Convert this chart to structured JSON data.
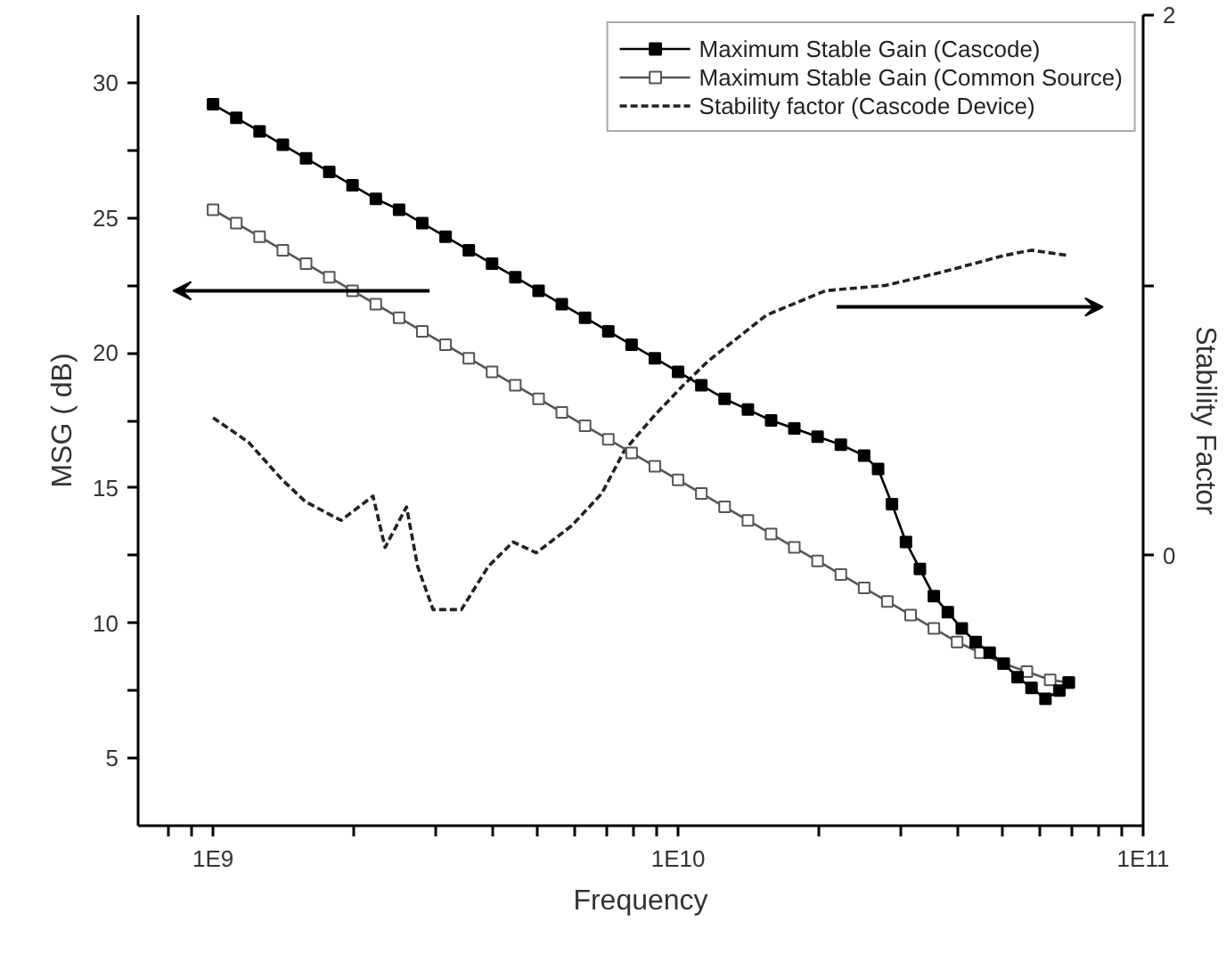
{
  "chart_data": {
    "type": "line",
    "xlabel": "Frequency",
    "ylabel": "MSG ( dB)",
    "y2label": "Stability Factor",
    "log": "x",
    "grid": false,
    "legend": "top right",
    "xlim": [
      690000000.0,
      100000000000.0
    ],
    "ylim": [
      2.5,
      32.5
    ],
    "y2lim": [
      -1,
      2
    ],
    "xticks": [
      {
        "value": 800000000.0,
        "label": null
      },
      {
        "value": 900000000.0,
        "label": null
      },
      {
        "value": 1000000000.0,
        "label": "1E9"
      },
      {
        "value": 2000000000.0,
        "label": null
      },
      {
        "value": 3000000000.0,
        "label": null
      },
      {
        "value": 4000000000.0,
        "label": null
      },
      {
        "value": 5000000000.0,
        "label": null
      },
      {
        "value": 6000000000.0,
        "label": null
      },
      {
        "value": 7000000000.0,
        "label": null
      },
      {
        "value": 8000000000.0,
        "label": null
      },
      {
        "value": 9000000000.0,
        "label": null
      },
      {
        "value": 10000000000.0,
        "label": "1E10"
      },
      {
        "value": 20000000000.0,
        "label": null
      },
      {
        "value": 30000000000.0,
        "label": null
      },
      {
        "value": 40000000000.0,
        "label": null
      },
      {
        "value": 50000000000.0,
        "label": null
      },
      {
        "value": 60000000000.0,
        "label": null
      },
      {
        "value": 70000000000.0,
        "label": null
      },
      {
        "value": 80000000000.0,
        "label": null
      },
      {
        "value": 90000000000.0,
        "label": null
      },
      {
        "value": 100000000000.0,
        "label": "1E11"
      }
    ],
    "yticks": [
      5,
      {
        "value": 7.5,
        "label": null
      },
      10,
      {
        "value": 12.5,
        "label": null
      },
      15,
      {
        "value": 17.5,
        "label": null
      },
      20,
      {
        "value": 22.5,
        "label": null
      },
      25,
      {
        "value": 27.5,
        "label": null
      },
      30
    ],
    "y2ticks": [
      0,
      {
        "value": 1,
        "label": null
      },
      2
    ],
    "series": [
      {
        "name": "Maximum Stable Gain (Cascode)",
        "color": "#000000",
        "marker": "square",
        "line_style": "solid",
        "x": [
          1000000000.0,
          1122000000.0,
          1259000000.0,
          1413000000.0,
          1585000000.0,
          1778000000.0,
          1995000000.0,
          2239000000.0,
          2512000000.0,
          2818000000.0,
          3162000000.0,
          3548000000.0,
          3981000000.0,
          4467000000.0,
          5012000000.0,
          5623000000.0,
          6310000000.0,
          7079000000.0,
          7943000000.0,
          8913000000.0,
          10000000000.0,
          11220000000.0,
          12590000000.0,
          14130000000.0,
          15850000000.0,
          17780000000.0,
          19950000000.0,
          22390000000.0,
          25120000000.0,
          26920000000.0,
          28840000000.0,
          30900000000.0,
          33110000000.0,
          35480000000.0,
          38020000000.0,
          40740000000.0,
          43650000000.0,
          46770000000.0,
          50120000000.0,
          53700000000.0,
          57540000000.0,
          61660000000.0,
          66070000000.0,
          69180000000.0
        ],
        "values": [
          29.2,
          28.7,
          28.2,
          27.7,
          27.2,
          26.7,
          26.2,
          25.7,
          25.3,
          24.8,
          24.3,
          23.8,
          23.3,
          22.8,
          22.3,
          21.8,
          21.3,
          20.8,
          20.3,
          19.8,
          19.3,
          18.8,
          18.3,
          17.9,
          17.5,
          17.2,
          16.9,
          16.6,
          16.2,
          15.7,
          14.4,
          13.0,
          12.0,
          11.0,
          10.4,
          9.8,
          9.3,
          8.9,
          8.5,
          8.0,
          7.6,
          7.2,
          7.5,
          7.8
        ]
      },
      {
        "name": "Maximum Stable Gain (Common Source)",
        "color": "#555555",
        "marker": "square",
        "line_style": "solid",
        "x": [
          1000000000.0,
          1122000000.0,
          1259000000.0,
          1413000000.0,
          1585000000.0,
          1778000000.0,
          1995000000.0,
          2239000000.0,
          2512000000.0,
          2818000000.0,
          3162000000.0,
          3548000000.0,
          3981000000.0,
          4467000000.0,
          5012000000.0,
          5623000000.0,
          6310000000.0,
          7079000000.0,
          7943000000.0,
          8913000000.0,
          10000000000.0,
          11220000000.0,
          12590000000.0,
          14130000000.0,
          15850000000.0,
          17780000000.0,
          19950000000.0,
          22390000000.0,
          25120000000.0,
          28180000000.0,
          31620000000.0,
          35480000000.0,
          39810000000.0,
          44670000000.0,
          50120000000.0,
          56230000000.0,
          63100000000.0,
          69180000000.0
        ],
        "values": [
          25.3,
          24.8,
          24.3,
          23.8,
          23.3,
          22.8,
          22.3,
          21.8,
          21.3,
          20.8,
          20.3,
          19.8,
          19.3,
          18.8,
          18.3,
          17.8,
          17.3,
          16.8,
          16.3,
          15.8,
          15.3,
          14.8,
          14.3,
          13.8,
          13.3,
          12.8,
          12.3,
          11.8,
          11.3,
          10.8,
          10.3,
          9.8,
          9.3,
          8.9,
          8.5,
          8.2,
          7.9,
          7.8
        ]
      },
      {
        "name": "Stability factor (Cascode Device)",
        "color": "#222222",
        "marker": "none",
        "line_style": "dashed",
        "axis": "y2",
        "x": [
          1000000000.0,
          1191000000.0,
          1409000000.0,
          1578000000.0,
          1884000000.0,
          2208000000.0,
          2344000000.0,
          2606000000.0,
          2754000000.0,
          2972000000.0,
          3420000000.0,
          3908000000.0,
          4416000000.0,
          4955000000.0,
          5902000000.0,
          6855000000.0,
          7674000000.0,
          8913000000.0,
          10260000000.0,
          11610000000.0,
          15490000000.0,
          20750000000.0,
          28000000000.0,
          37150000000.0,
          50120000000.0,
          57540000000.0,
          69180000000.0
        ],
        "values": [
          0.51,
          0.42,
          0.28,
          0.2,
          0.13,
          0.22,
          0.03,
          0.18,
          -0.04,
          -0.2,
          -0.2,
          -0.04,
          0.05,
          0.01,
          0.11,
          0.23,
          0.39,
          0.52,
          0.63,
          0.72,
          0.89,
          0.98,
          1.0,
          1.05,
          1.11,
          1.13,
          1.11
        ]
      }
    ]
  }
}
